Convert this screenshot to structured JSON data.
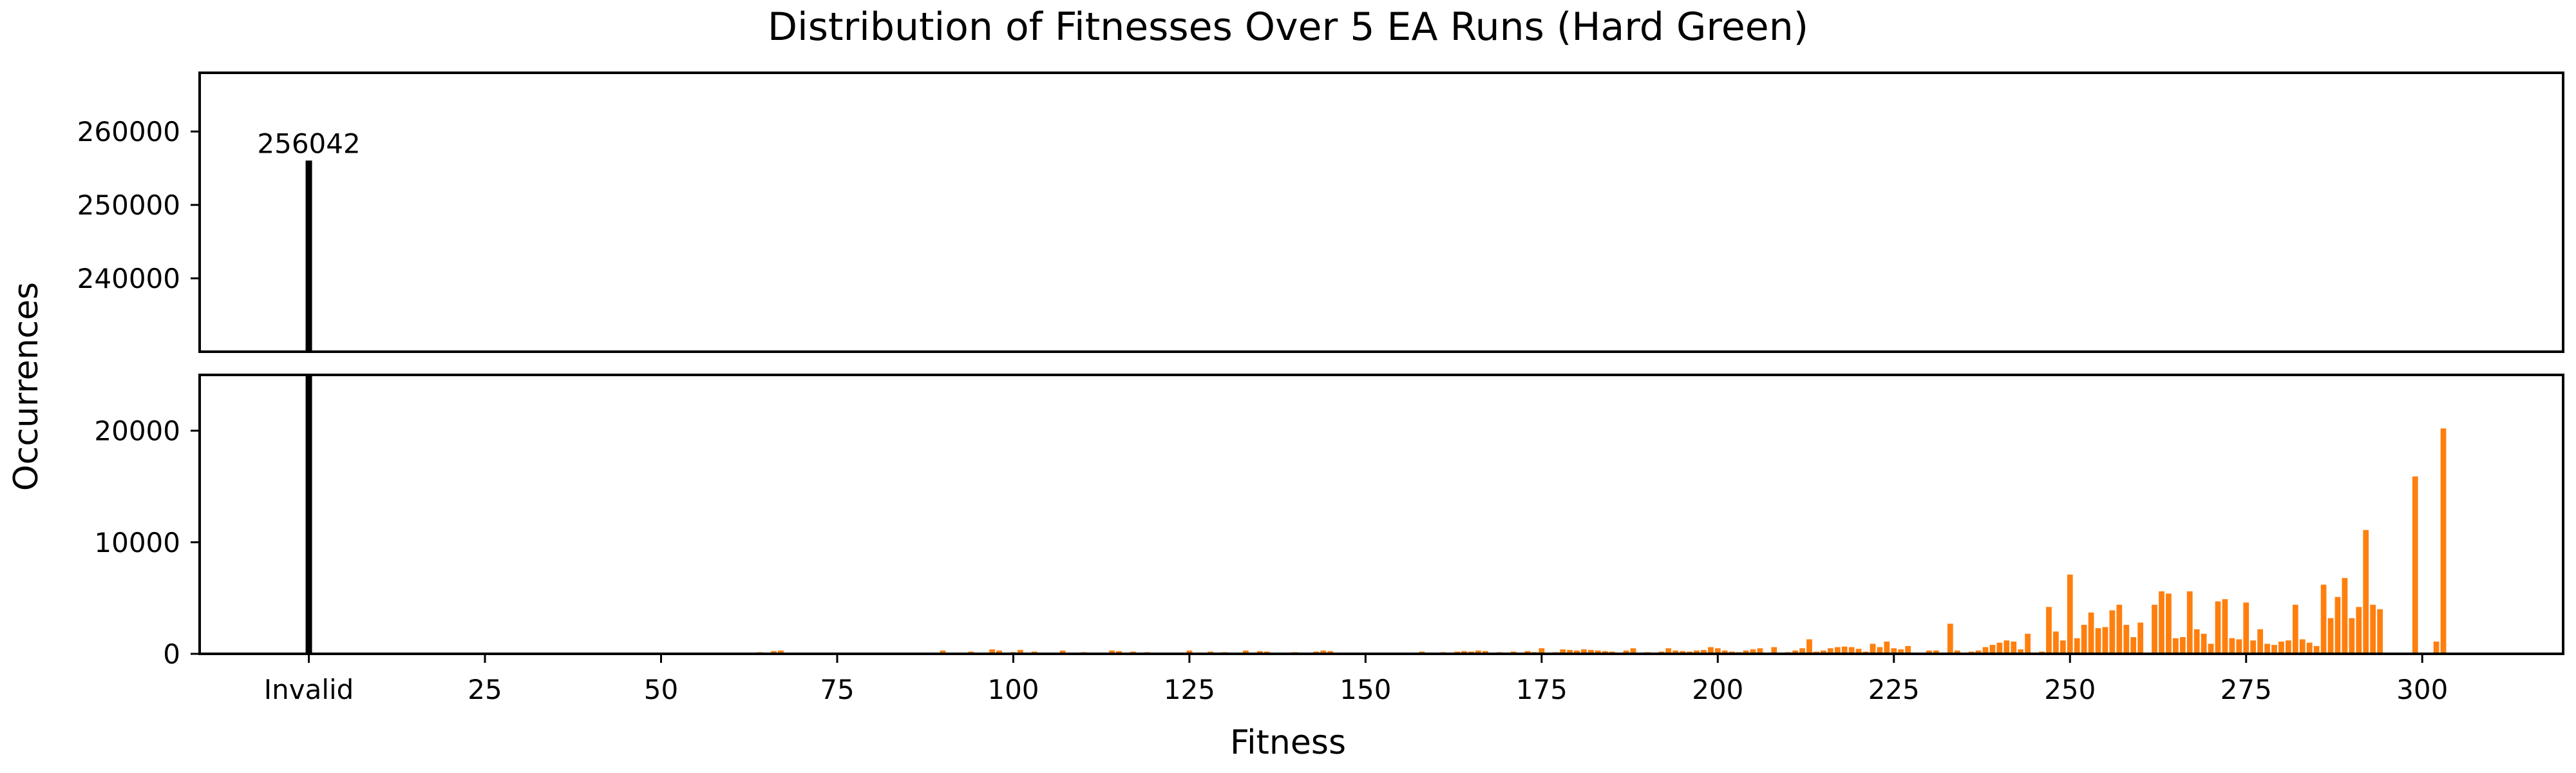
{
  "chart_data": {
    "type": "bar",
    "title": "Distribution of Fitnesses Over 5 EA Runs (Hard Green)",
    "xlabel": "Fitness",
    "ylabel": "Occurrences",
    "invalid_label": "Invalid",
    "invalid_count": 256042,
    "invalid_annotation": "256042",
    "xlim": [
      -15.5,
      320
    ],
    "xticks": [
      25,
      50,
      75,
      100,
      125,
      150,
      175,
      200,
      225,
      250,
      275,
      300
    ],
    "top_ylim": [
      230000,
      268000
    ],
    "top_yticks": [
      240000,
      250000,
      260000
    ],
    "bottom_ylim": [
      0,
      25000
    ],
    "bottom_yticks": [
      0,
      10000,
      20000
    ],
    "grid": false,
    "colors": {
      "invalid": "#000000",
      "valid": "#ff7f0e"
    },
    "bars": [
      [
        21,
        40
      ],
      [
        24,
        60
      ],
      [
        30,
        50
      ],
      [
        34,
        40
      ],
      [
        42,
        60
      ],
      [
        49,
        50
      ],
      [
        53,
        60
      ],
      [
        58,
        80
      ],
      [
        62,
        50
      ],
      [
        64,
        150
      ],
      [
        66,
        250
      ],
      [
        67,
        300
      ],
      [
        71,
        80
      ],
      [
        75,
        100
      ],
      [
        78,
        60
      ],
      [
        83,
        80
      ],
      [
        87,
        100
      ],
      [
        90,
        300
      ],
      [
        94,
        200
      ],
      [
        97,
        400
      ],
      [
        98,
        300
      ],
      [
        100,
        150
      ],
      [
        101,
        350
      ],
      [
        103,
        200
      ],
      [
        107,
        300
      ],
      [
        110,
        150
      ],
      [
        114,
        300
      ],
      [
        115,
        250
      ],
      [
        117,
        200
      ],
      [
        119,
        150
      ],
      [
        121,
        100
      ],
      [
        125,
        300
      ],
      [
        126,
        100
      ],
      [
        128,
        200
      ],
      [
        130,
        150
      ],
      [
        133,
        300
      ],
      [
        135,
        250
      ],
      [
        136,
        200
      ],
      [
        140,
        150
      ],
      [
        143,
        200
      ],
      [
        144,
        300
      ],
      [
        145,
        250
      ],
      [
        148,
        100
      ],
      [
        152,
        100
      ],
      [
        156,
        100
      ],
      [
        158,
        200
      ],
      [
        161,
        150
      ],
      [
        163,
        200
      ],
      [
        164,
        250
      ],
      [
        165,
        200
      ],
      [
        166,
        300
      ],
      [
        167,
        250
      ],
      [
        169,
        150
      ],
      [
        171,
        200
      ],
      [
        173,
        250
      ],
      [
        174,
        150
      ],
      [
        175,
        500
      ],
      [
        177,
        150
      ],
      [
        178,
        400
      ],
      [
        179,
        350
      ],
      [
        180,
        300
      ],
      [
        181,
        400
      ],
      [
        182,
        350
      ],
      [
        183,
        300
      ],
      [
        184,
        250
      ],
      [
        185,
        200
      ],
      [
        187,
        300
      ],
      [
        188,
        500
      ],
      [
        190,
        150
      ],
      [
        192,
        200
      ],
      [
        193,
        500
      ],
      [
        194,
        300
      ],
      [
        195,
        250
      ],
      [
        196,
        200
      ],
      [
        197,
        300
      ],
      [
        198,
        350
      ],
      [
        199,
        600
      ],
      [
        200,
        500
      ],
      [
        201,
        300
      ],
      [
        202,
        200
      ],
      [
        203,
        150
      ],
      [
        204,
        300
      ],
      [
        205,
        400
      ],
      [
        206,
        500
      ],
      [
        208,
        600
      ],
      [
        210,
        150
      ],
      [
        211,
        300
      ],
      [
        212,
        500
      ],
      [
        213,
        1300
      ],
      [
        214,
        200
      ],
      [
        215,
        300
      ],
      [
        216,
        500
      ],
      [
        217,
        600
      ],
      [
        218,
        650
      ],
      [
        219,
        600
      ],
      [
        220,
        450
      ],
      [
        221,
        200
      ],
      [
        222,
        900
      ],
      [
        223,
        600
      ],
      [
        224,
        1100
      ],
      [
        225,
        500
      ],
      [
        226,
        400
      ],
      [
        227,
        700
      ],
      [
        230,
        300
      ],
      [
        231,
        300
      ],
      [
        233,
        2700
      ],
      [
        234,
        300
      ],
      [
        236,
        200
      ],
      [
        237,
        300
      ],
      [
        238,
        600
      ],
      [
        239,
        800
      ],
      [
        240,
        1000
      ],
      [
        241,
        1200
      ],
      [
        242,
        1100
      ],
      [
        243,
        400
      ],
      [
        244,
        1800
      ],
      [
        246,
        200
      ],
      [
        247,
        4200
      ],
      [
        248,
        2000
      ],
      [
        249,
        1200
      ],
      [
        250,
        7100
      ],
      [
        251,
        1400
      ],
      [
        252,
        2600
      ],
      [
        253,
        3700
      ],
      [
        254,
        2300
      ],
      [
        255,
        2400
      ],
      [
        256,
        3900
      ],
      [
        257,
        4400
      ],
      [
        258,
        2600
      ],
      [
        259,
        1500
      ],
      [
        260,
        2800
      ],
      [
        262,
        4400
      ],
      [
        263,
        5600
      ],
      [
        264,
        5400
      ],
      [
        265,
        1400
      ],
      [
        266,
        1500
      ],
      [
        267,
        5600
      ],
      [
        268,
        2200
      ],
      [
        269,
        1800
      ],
      [
        270,
        900
      ],
      [
        271,
        4700
      ],
      [
        272,
        4900
      ],
      [
        273,
        1400
      ],
      [
        274,
        1300
      ],
      [
        275,
        4600
      ],
      [
        276,
        1200
      ],
      [
        277,
        2200
      ],
      [
        278,
        900
      ],
      [
        279,
        800
      ],
      [
        280,
        1100
      ],
      [
        281,
        1200
      ],
      [
        282,
        4400
      ],
      [
        283,
        1300
      ],
      [
        284,
        1000
      ],
      [
        285,
        700
      ],
      [
        286,
        6200
      ],
      [
        287,
        3200
      ],
      [
        288,
        5100
      ],
      [
        289,
        6800
      ],
      [
        290,
        3200
      ],
      [
        291,
        4200
      ],
      [
        292,
        11100
      ],
      [
        293,
        4400
      ],
      [
        294,
        4000
      ],
      [
        299,
        15900
      ],
      [
        302,
        1100
      ],
      [
        303,
        20200
      ]
    ]
  }
}
